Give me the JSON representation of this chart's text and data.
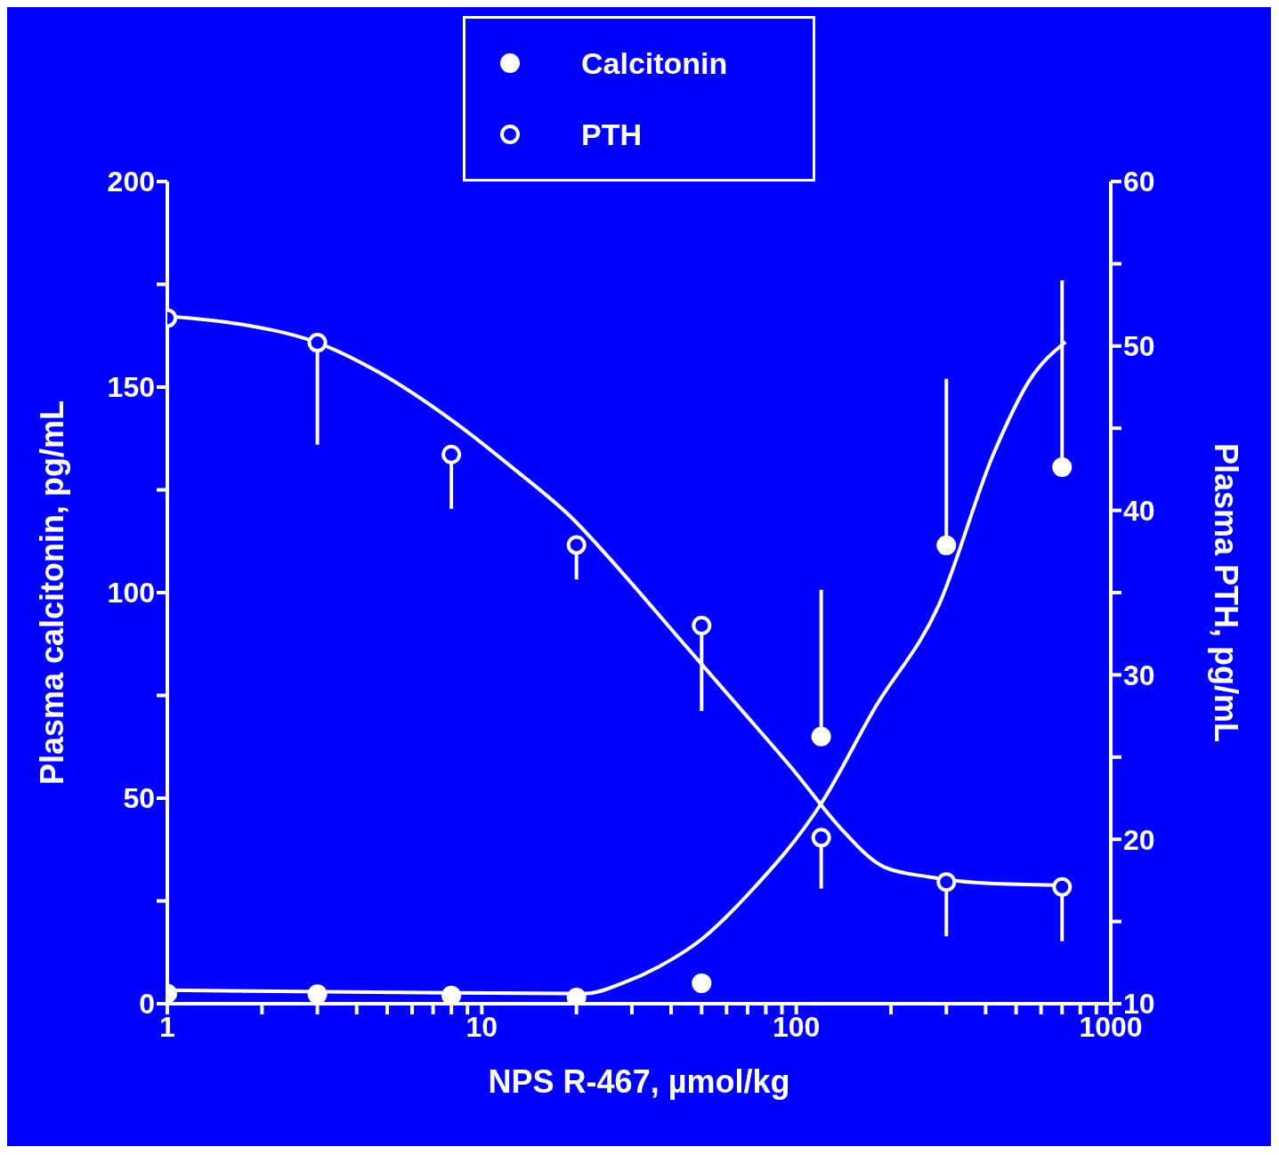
{
  "chart_data": {
    "type": "scatter",
    "xlabel": "NPS R-467,  µmol/kg",
    "ylabel": "Plasma calcitonin,  pg/mL",
    "y2label": "Plasma PTH,  pg/mL",
    "log": "x",
    "legend": "top",
    "grid": false,
    "xlim": [
      1,
      1000
    ],
    "xticks": [
      1,
      {
        "value": 2,
        "label": null
      },
      {
        "value": 3,
        "label": null
      },
      {
        "value": 4,
        "label": null
      },
      {
        "value": 5,
        "label": null
      },
      {
        "value": 6,
        "label": null
      },
      {
        "value": 7,
        "label": null
      },
      {
        "value": 8,
        "label": null
      },
      {
        "value": 9,
        "label": null
      },
      10,
      {
        "value": 20,
        "label": null
      },
      {
        "value": 30,
        "label": null
      },
      {
        "value": 40,
        "label": null
      },
      {
        "value": 50,
        "label": null
      },
      {
        "value": 60,
        "label": null
      },
      {
        "value": 70,
        "label": null
      },
      {
        "value": 80,
        "label": null
      },
      {
        "value": 90,
        "label": null
      },
      100,
      {
        "value": 200,
        "label": null
      },
      {
        "value": 300,
        "label": null
      },
      {
        "value": 400,
        "label": null
      },
      {
        "value": 500,
        "label": null
      },
      {
        "value": 600,
        "label": null
      },
      {
        "value": 700,
        "label": null
      },
      {
        "value": 800,
        "label": null
      },
      {
        "value": 900,
        "label": null
      },
      1000
    ],
    "ylim": [
      0,
      200
    ],
    "yticks": [
      0,
      {
        "value": 25,
        "label": null
      },
      50,
      {
        "value": 75,
        "label": null
      },
      100,
      {
        "value": 125,
        "label": null
      },
      150,
      {
        "value": 175,
        "label": null
      },
      200
    ],
    "y2lim": [
      10,
      60
    ],
    "y2ticks": [
      10,
      {
        "value": 15,
        "label": null
      },
      20,
      {
        "value": 25,
        "label": null
      },
      30,
      {
        "value": 35,
        "label": null
      },
      40,
      {
        "value": 45,
        "label": null
      },
      50,
      {
        "value": 55,
        "label": null
      },
      60
    ],
    "series": [
      {
        "name": "Calcitonin",
        "type": "scatter",
        "marker": "circle",
        "color": "#ffffff",
        "x": [
          1,
          3,
          8,
          20,
          50,
          120,
          300,
          700
        ],
        "values": [
          2.5,
          2.3,
          2,
          1.5,
          5,
          65,
          111.5,
          130.5
        ],
        "errors": [
          null,
          null,
          null,
          null,
          null,
          [
            65,
            100.7
          ],
          [
            111.5,
            152
          ],
          [
            130.5,
            176
          ]
        ]
      },
      {
        "name": "PTH",
        "marker": "open circle",
        "color": "#ffffff",
        "axis": "y2",
        "x": [
          1,
          3,
          8,
          20,
          50,
          120,
          300,
          700
        ],
        "values": [
          51.7,
          50.2,
          43.4,
          37.9,
          33,
          20.1,
          17.4,
          17.1
        ],
        "errors": [
          [
            48.5,
            51.7
          ],
          [
            44,
            50.2
          ],
          [
            40.1,
            43.4
          ],
          [
            35.8,
            37.9
          ],
          [
            27.8,
            33
          ],
          [
            17,
            20.1
          ],
          [
            14.1,
            17.4
          ],
          [
            13.8,
            17.1
          ]
        ]
      },
      {
        "type": "line",
        "marker": "none",
        "color": "#ffffff",
        "x": [
          1,
          6.5,
          21.5,
          28,
          36.5,
          50,
          71,
          120,
          178,
          284,
          425,
          550,
          718
        ],
        "values": [
          3.3,
          2.7,
          2.5,
          5,
          9,
          15.7,
          27,
          48.7,
          72,
          97,
          134,
          151.5,
          161
        ]
      },
      {
        "type": "line",
        "marker": "none",
        "color": "#ffffff",
        "axis": "y2",
        "x": [
          1,
          1.74,
          3,
          4.7,
          8,
          12.7,
          19.2,
          28,
          41.6,
          66,
          99,
          138,
          191,
          267,
          425,
          740
        ],
        "values": [
          51.8,
          51.3,
          50.2,
          48.4,
          45.5,
          42.5,
          39.6,
          36.2,
          32.4,
          28,
          24.1,
          20.7,
          18.3,
          17.7,
          17.3,
          17.2
        ]
      }
    ]
  }
}
